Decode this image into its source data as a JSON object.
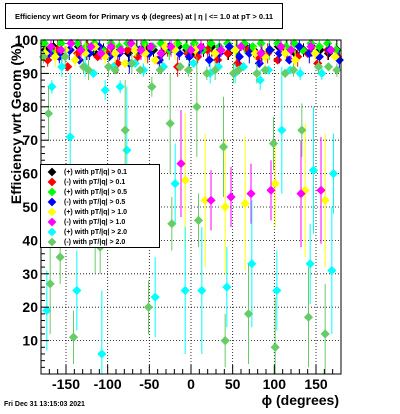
{
  "title": "Efficiency wrt Geom for Primary vs ϕ (degrees) at |  η | <= 1.0 at pT > 0.11",
  "timestamp": "Fri Dec 31 13:15:03 2021",
  "chart_data": {
    "type": "scatter",
    "title": "Efficiency wrt Geom for Primary vs ϕ (degrees) at |  η | <= 1.0 at pT > 0.11",
    "xlabel": "ϕ (degrees)",
    "ylabel": "Efficiency wrt Geom (%)",
    "xlim": [
      -180,
      180
    ],
    "ylim": [
      0,
      100
    ],
    "x_ticks": [
      -150,
      -100,
      -50,
      0,
      50,
      100,
      150
    ],
    "y_ticks": [
      10,
      20,
      30,
      40,
      50,
      60,
      70,
      80,
      90,
      100
    ],
    "grid": true,
    "legend_position": "left-middle",
    "series": [
      {
        "name": "(+) with pT/|q| > 0.1",
        "color": "#000000",
        "points": [
          [
            -175,
            97
          ],
          [
            -165,
            98
          ],
          [
            -155,
            96
          ],
          [
            -145,
            97
          ],
          [
            -135,
            98
          ],
          [
            -125,
            97
          ],
          [
            -115,
            96
          ],
          [
            -105,
            97
          ],
          [
            -95,
            98
          ],
          [
            -85,
            97
          ],
          [
            -75,
            96
          ],
          [
            -65,
            97
          ],
          [
            -55,
            98
          ],
          [
            -45,
            97
          ],
          [
            -35,
            96
          ],
          [
            -25,
            97
          ],
          [
            -15,
            98
          ],
          [
            -5,
            97
          ],
          [
            5,
            96
          ],
          [
            15,
            97
          ],
          [
            25,
            98
          ],
          [
            35,
            97
          ],
          [
            45,
            96
          ],
          [
            55,
            97
          ],
          [
            65,
            98
          ],
          [
            75,
            97
          ],
          [
            85,
            96
          ],
          [
            95,
            97
          ],
          [
            105,
            98
          ],
          [
            115,
            97
          ],
          [
            125,
            96
          ],
          [
            135,
            97
          ],
          [
            145,
            98
          ],
          [
            155,
            97
          ],
          [
            165,
            96
          ],
          [
            175,
            97
          ]
        ]
      },
      {
        "name": "(-) with pT/|q| > 0.1",
        "color": "#ff0000",
        "points": [
          [
            -172,
            94
          ],
          [
            -160,
            97
          ],
          [
            -148,
            92
          ],
          [
            -136,
            96
          ],
          [
            -124,
            98
          ],
          [
            -112,
            95
          ],
          [
            -100,
            96
          ],
          [
            -88,
            93
          ],
          [
            -76,
            97
          ],
          [
            -64,
            95
          ],
          [
            -52,
            96
          ],
          [
            -40,
            94
          ],
          [
            -28,
            97
          ],
          [
            -16,
            92
          ],
          [
            -4,
            96
          ],
          [
            8,
            95
          ],
          [
            20,
            97
          ],
          [
            32,
            94
          ],
          [
            44,
            96
          ],
          [
            56,
            93
          ],
          [
            68,
            97
          ],
          [
            80,
            95
          ],
          [
            92,
            96
          ],
          [
            104,
            94
          ],
          [
            116,
            97
          ],
          [
            128,
            95
          ],
          [
            140,
            96
          ],
          [
            152,
            93
          ],
          [
            164,
            97
          ],
          [
            176,
            95
          ]
        ]
      },
      {
        "name": "(+) with pT/|q| > 0.5",
        "color": "#00ff00",
        "points": [
          [
            -176,
            99
          ],
          [
            -166,
            96
          ],
          [
            -156,
            99
          ],
          [
            -146,
            97
          ],
          [
            -136,
            99
          ],
          [
            -126,
            98
          ],
          [
            -116,
            99
          ],
          [
            -106,
            97
          ],
          [
            -96,
            99
          ],
          [
            -86,
            98
          ],
          [
            -76,
            99
          ],
          [
            -66,
            97
          ],
          [
            -56,
            99
          ],
          [
            -46,
            98
          ],
          [
            -36,
            99
          ],
          [
            -26,
            97
          ],
          [
            -16,
            99
          ],
          [
            -6,
            98
          ],
          [
            4,
            99
          ],
          [
            14,
            97
          ],
          [
            24,
            99
          ],
          [
            34,
            98
          ],
          [
            44,
            99
          ],
          [
            54,
            97
          ],
          [
            64,
            99
          ],
          [
            74,
            98
          ],
          [
            84,
            99
          ],
          [
            94,
            97
          ],
          [
            104,
            99
          ],
          [
            114,
            98
          ],
          [
            124,
            99
          ],
          [
            134,
            97
          ],
          [
            144,
            99
          ],
          [
            154,
            98
          ],
          [
            164,
            99
          ],
          [
            174,
            97
          ]
        ]
      },
      {
        "name": "(-) with pT/|q| > 0.5",
        "color": "#0000ff",
        "points": [
          [
            -170,
            96
          ],
          [
            -158,
            95
          ],
          [
            -146,
            97
          ],
          [
            -134,
            94
          ],
          [
            -122,
            96
          ],
          [
            -110,
            98
          ],
          [
            -98,
            95
          ],
          [
            -86,
            96
          ],
          [
            -74,
            93
          ],
          [
            -62,
            97
          ],
          [
            -50,
            96
          ],
          [
            -38,
            94
          ],
          [
            -26,
            98
          ],
          [
            -14,
            96
          ],
          [
            -2,
            95
          ],
          [
            10,
            97
          ],
          [
            22,
            94
          ],
          [
            34,
            96
          ],
          [
            46,
            98
          ],
          [
            58,
            95
          ],
          [
            70,
            96
          ],
          [
            82,
            93
          ],
          [
            94,
            97
          ],
          [
            106,
            96
          ],
          [
            118,
            94
          ],
          [
            130,
            98
          ],
          [
            142,
            96
          ],
          [
            154,
            95
          ],
          [
            166,
            97
          ],
          [
            178,
            94
          ]
        ]
      },
      {
        "name": "(+) with pT/|q| > 1.0",
        "color": "#ffff00",
        "points": [
          [
            -175,
            96
          ],
          [
            -163,
            95
          ],
          [
            -151,
            97
          ],
          [
            -139,
            94
          ],
          [
            -127,
            96
          ],
          [
            -115,
            98
          ],
          [
            -103,
            95
          ],
          [
            -91,
            96
          ],
          [
            -79,
            93
          ],
          [
            -67,
            97
          ],
          [
            -55,
            96
          ],
          [
            -43,
            94
          ],
          [
            -31,
            98
          ],
          [
            -19,
            97
          ],
          [
            -7,
            58
          ],
          [
            5,
            97
          ],
          [
            17,
            52
          ],
          [
            29,
            96
          ],
          [
            41,
            50
          ],
          [
            53,
            97
          ],
          [
            65,
            51
          ],
          [
            77,
            96
          ],
          [
            89,
            95
          ],
          [
            101,
            57
          ],
          [
            113,
            96
          ],
          [
            125,
            94
          ],
          [
            137,
            55
          ],
          [
            149,
            96
          ],
          [
            161,
            52
          ],
          [
            173,
            95
          ]
        ]
      },
      {
        "name": "(-) with pT/|q| > 1.0",
        "color": "#ff00ff",
        "points": [
          [
            -168,
            98
          ],
          [
            -156,
            97
          ],
          [
            -144,
            99
          ],
          [
            -132,
            97
          ],
          [
            -120,
            98
          ],
          [
            -108,
            96
          ],
          [
            -96,
            98
          ],
          [
            -84,
            97
          ],
          [
            -72,
            99
          ],
          [
            -60,
            97
          ],
          [
            -48,
            98
          ],
          [
            -36,
            96
          ],
          [
            -24,
            98
          ],
          [
            -12,
            63
          ],
          [
            0,
            97
          ],
          [
            12,
            98
          ],
          [
            24,
            52
          ],
          [
            36,
            97
          ],
          [
            48,
            53
          ],
          [
            60,
            98
          ],
          [
            72,
            54
          ],
          [
            84,
            96
          ],
          [
            96,
            55
          ],
          [
            108,
            98
          ],
          [
            120,
            97
          ],
          [
            132,
            54
          ],
          [
            144,
            98
          ],
          [
            156,
            55
          ],
          [
            168,
            97
          ]
        ]
      },
      {
        "name": "(+) with pT/|q| > 2.0",
        "color": "#00ffff",
        "points": [
          [
            -173,
            19
          ],
          [
            -167,
            86
          ],
          [
            -155,
            92
          ],
          [
            -145,
            71
          ],
          [
            -137,
            25
          ],
          [
            -127,
            92
          ],
          [
            -117,
            90
          ],
          [
            -107,
            6
          ],
          [
            -103,
            85
          ],
          [
            -93,
            92
          ],
          [
            -85,
            86
          ],
          [
            -77,
            67
          ],
          [
            -67,
            93
          ],
          [
            -57,
            91
          ],
          [
            -43,
            23
          ],
          [
            -33,
            92
          ],
          [
            -19,
            57
          ],
          [
            -7,
            25
          ],
          [
            3,
            93
          ],
          [
            13,
            25
          ],
          [
            23,
            90
          ],
          [
            33,
            92
          ],
          [
            43,
            26
          ],
          [
            53,
            90
          ],
          [
            63,
            92
          ],
          [
            73,
            33
          ],
          [
            83,
            88
          ],
          [
            93,
            91
          ],
          [
            103,
            25
          ],
          [
            109,
            73
          ],
          [
            119,
            91
          ],
          [
            131,
            90
          ],
          [
            143,
            33
          ],
          [
            147,
            61
          ],
          [
            157,
            90
          ],
          [
            169,
            31
          ],
          [
            171,
            60
          ]
        ]
      },
      {
        "name": "(-) with pT/|q| > 2.0",
        "color": "#66cc66",
        "points": [
          [
            -177,
            95
          ],
          [
            -171,
            78
          ],
          [
            -169,
            27
          ],
          [
            -157,
            35
          ],
          [
            -151,
            95
          ],
          [
            -141,
            11
          ],
          [
            -129,
            92
          ],
          [
            -123,
            91
          ],
          [
            -115,
            45
          ],
          [
            -109,
            38
          ],
          [
            -99,
            92
          ],
          [
            -91,
            91
          ],
          [
            -79,
            73
          ],
          [
            -71,
            93
          ],
          [
            -61,
            91
          ],
          [
            -51,
            20
          ],
          [
            -47,
            86
          ],
          [
            -37,
            91
          ],
          [
            -25,
            75
          ],
          [
            -23,
            45
          ],
          [
            -13,
            92
          ],
          [
            -3,
            91
          ],
          [
            7,
            80
          ],
          [
            9,
            46
          ],
          [
            19,
            90
          ],
          [
            29,
            91
          ],
          [
            39,
            68
          ],
          [
            41,
            10
          ],
          [
            51,
            90
          ],
          [
            57,
            91
          ],
          [
            69,
            18
          ],
          [
            79,
            90
          ],
          [
            89,
            91
          ],
          [
            99,
            69
          ],
          [
            101,
            8
          ],
          [
            113,
            90
          ],
          [
            123,
            91
          ],
          [
            133,
            73
          ],
          [
            141,
            17
          ],
          [
            153,
            92
          ],
          [
            161,
            12
          ],
          [
            165,
            92
          ],
          [
            175,
            91
          ]
        ]
      }
    ]
  }
}
